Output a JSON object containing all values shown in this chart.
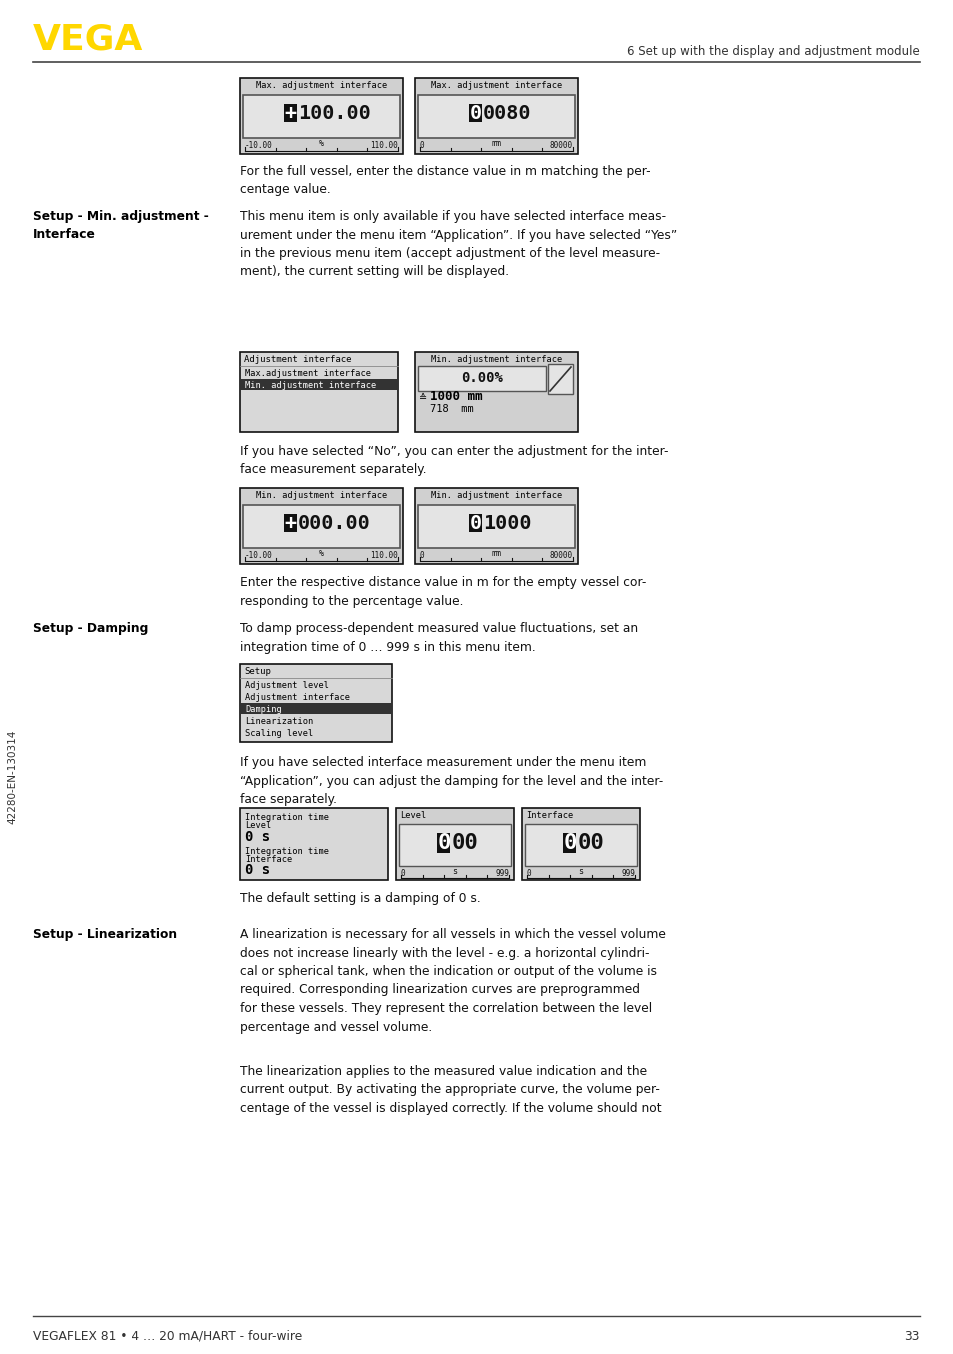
{
  "page_bg": "#ffffff",
  "vega_logo_text": "VEGA",
  "vega_logo_color": "#FFD700",
  "header_right_text": "6 Set up with the display and adjustment module",
  "footer_left_text": "VEGAFLEX 81 • 4 … 20 mA/HART - four-wire",
  "footer_right_text": "33",
  "left_margin_text": "42280-EN-130314",
  "body_text_color": "#111111",
  "box_bg": "#d4d4d4",
  "box_border": "#000000",
  "display_bg": "#e0e0e0",
  "display_inner_bg": "#d8d8d8"
}
